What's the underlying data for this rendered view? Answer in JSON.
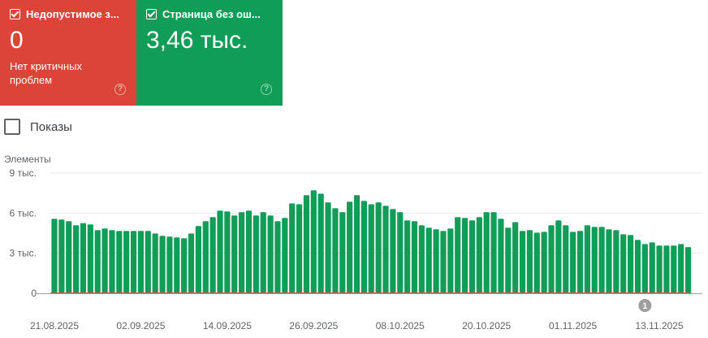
{
  "cards": [
    {
      "label": "Недопустимое з...",
      "value": "0",
      "subtitle": "Нет критичных проблем",
      "color": "#db4437",
      "checked": true,
      "icon": "help-icon"
    },
    {
      "label": "Страница без ош...",
      "value": "3,46 тыс.",
      "subtitle": "",
      "color": "#0f9d58",
      "checked": true,
      "icon": "help-icon"
    }
  ],
  "impressions": {
    "label": "Показы",
    "checked": false
  },
  "chart_data": {
    "type": "bar",
    "ylabel": "Элементы",
    "ylim": [
      0,
      9000
    ],
    "y_ticks": [
      "0",
      "3 тыс.",
      "6 тыс.",
      "9 тыс."
    ],
    "x_tick_labels": [
      "21.08.2025",
      "02.09.2025",
      "14.09.2025",
      "26.09.2025",
      "08.10.2025",
      "20.10.2025",
      "01.11.2025",
      "13.11.2025"
    ],
    "x_start": "21.08.2025",
    "x_end": "17.11.2025",
    "grid": true,
    "annotation": {
      "label": "1",
      "date": "11.11.2025"
    },
    "series": [
      {
        "color": "#0f9d58",
        "values": [
          5580,
          5520,
          5400,
          5090,
          5250,
          5150,
          4730,
          4850,
          4730,
          4670,
          4670,
          4670,
          4670,
          4670,
          4480,
          4300,
          4240,
          4180,
          4120,
          4480,
          5030,
          5400,
          5700,
          6190,
          6130,
          5820,
          6070,
          6190,
          5820,
          6070,
          5820,
          5400,
          5640,
          6730,
          6670,
          7340,
          7710,
          7460,
          6800,
          6370,
          6070,
          6860,
          7340,
          6920,
          6670,
          6800,
          6550,
          6310,
          6070,
          5460,
          5400,
          5090,
          4910,
          4790,
          4670,
          4850,
          5700,
          5640,
          5460,
          5700,
          6070,
          6070,
          5580,
          4910,
          5330,
          4670,
          4730,
          4540,
          4600,
          5090,
          5460,
          5090,
          4600,
          4670,
          5090,
          4970,
          4970,
          4790,
          4730,
          4420,
          4360,
          4000,
          3690,
          3810,
          3570,
          3570,
          3570,
          3690,
          3460
        ]
      },
      {
        "color": "#db4437",
        "values": [
          0,
          0,
          0,
          0,
          0,
          0,
          0,
          0,
          0,
          0,
          0,
          0,
          0,
          0,
          0,
          0,
          0,
          0,
          0,
          0,
          0,
          0,
          0,
          0,
          0,
          0,
          0,
          0,
          0,
          0,
          0,
          0,
          0,
          0,
          0,
          0,
          0,
          0,
          0,
          0,
          0,
          0,
          0,
          0,
          0,
          0,
          0,
          0,
          0,
          0,
          0,
          0,
          0,
          0,
          0,
          0,
          0,
          0,
          0,
          0,
          0,
          0,
          0,
          0,
          0,
          0,
          0,
          0,
          0,
          0,
          0,
          0,
          0,
          0,
          0,
          0,
          0,
          0,
          0,
          0,
          0,
          0,
          0,
          0,
          0,
          0,
          0,
          0,
          0
        ]
      }
    ]
  }
}
